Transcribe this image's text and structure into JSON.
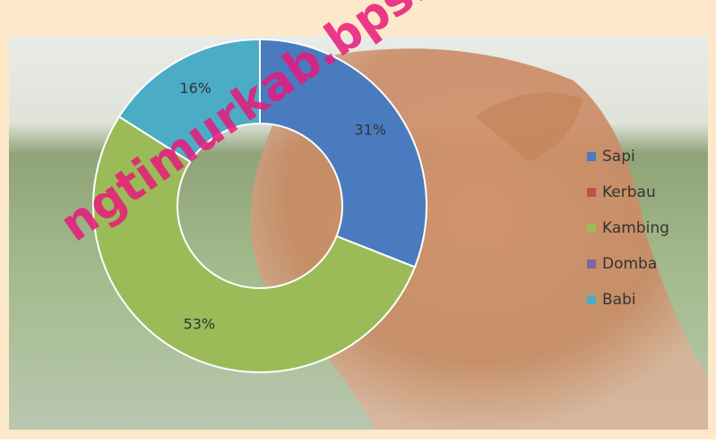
{
  "chart_data": {
    "type": "donut",
    "categories": [
      "Sapi",
      "Kerbau",
      "Kambing",
      "Domba",
      "Babi"
    ],
    "values": [
      31,
      0,
      53,
      0,
      16
    ],
    "value_labels": [
      "31%",
      null,
      "53%",
      null,
      "16%"
    ],
    "colors": [
      "#4a7bbf",
      "#c0504d",
      "#9bbb59",
      "#8064a2",
      "#4bacc6"
    ],
    "legend": "right",
    "watermark": "ngtimurkab.bps.g"
  }
}
